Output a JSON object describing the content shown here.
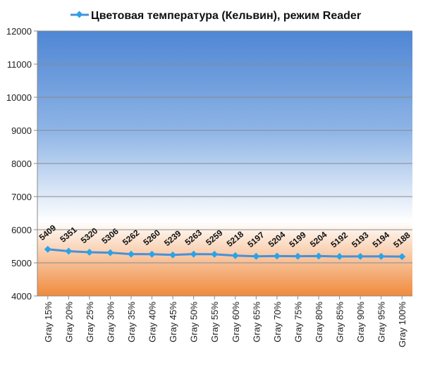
{
  "chart_data": {
    "type": "line",
    "title": "",
    "legend": {
      "placement": "top",
      "entries": [
        "Цветовая температура (Кельвин), режим Reader"
      ]
    },
    "xlabel": "",
    "ylabel": "",
    "ylim": [
      4000,
      12000
    ],
    "yticks": [
      4000,
      5000,
      6000,
      7000,
      8000,
      9000,
      10000,
      11000,
      12000
    ],
    "grid": true,
    "categories": [
      "Gray 15%",
      "Gray 20%",
      "Gray 25%",
      "Gray 30%",
      "Gray 35%",
      "Gray 40%",
      "Gray 45%",
      "Gray 50%",
      "Gray 55%",
      "Gray 60%",
      "Gray 65%",
      "Gray 70%",
      "Gray 75%",
      "Gray 80%",
      "Gray 85%",
      "Gray 90%",
      "Gray 95%",
      "Gray 100%"
    ],
    "series": [
      {
        "name": "Цветовая температура (Кельвин), режим Reader",
        "values": [
          5409,
          5351,
          5320,
          5306,
          5262,
          5260,
          5239,
          5263,
          5259,
          5218,
          5197,
          5204,
          5199,
          5204,
          5192,
          5193,
          5194,
          5188
        ]
      }
    ],
    "colors": {
      "line": "#4a8fd6",
      "marker": "#29a3ea",
      "bg_top": "#4f86d4",
      "bg_mid": "#ffffff",
      "bg_bottom": "#f08a3c"
    }
  }
}
